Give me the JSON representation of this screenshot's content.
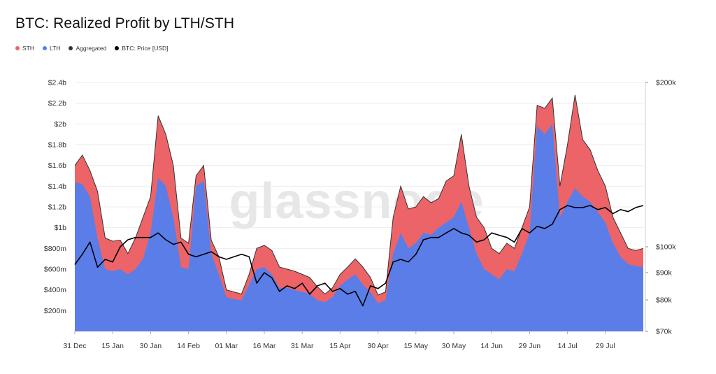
{
  "title": "BTC: Realized Profit by LTH/STH",
  "watermark": "glassnode",
  "legend": [
    {
      "label": "STH",
      "color": "#ec6468"
    },
    {
      "label": "LTH",
      "color": "#5b7de8"
    },
    {
      "label": "Aggregated",
      "color": "#333333"
    },
    {
      "label": "BTC: Price [USD]",
      "color": "#000000"
    }
  ],
  "chart_data": {
    "type": "area",
    "x_tick_labels": [
      "31 Dec",
      "15 Jan",
      "30 Jan",
      "14 Feb",
      "01 Mar",
      "16 Mar",
      "31 Mar",
      "15 Apr",
      "30 Apr",
      "15 May",
      "30 May",
      "14 Jun",
      "29 Jun",
      "14 Jul",
      "29 Jul"
    ],
    "y_left_ticks": [
      "$200m",
      "$400m",
      "$600m",
      "$800m",
      "$1b",
      "$1.2b",
      "$1.4b",
      "$1.6b",
      "$1.8b",
      "$2b",
      "$2.2b",
      "$2.4b"
    ],
    "y_right_ticks": [
      "$70k",
      "$80k",
      "$90k",
      "$100k",
      "$200k"
    ],
    "y_left_range": [
      0,
      2.4
    ],
    "y_left_unit": "billions USD",
    "y_right_scale": "log",
    "y_right_range": [
      70000,
      200000
    ],
    "grid": true,
    "legend_placement": "top-left",
    "series": [
      {
        "name": "STH",
        "color": "#ec6468",
        "stacked_on": "LTH",
        "points": [
          [
            0,
            1.6
          ],
          [
            3,
            1.7
          ],
          [
            6,
            1.55
          ],
          [
            9,
            1.35
          ],
          [
            12,
            0.9
          ],
          [
            15,
            0.87
          ],
          [
            18,
            0.88
          ],
          [
            21,
            0.75
          ],
          [
            24,
            0.9
          ],
          [
            27,
            1.1
          ],
          [
            30,
            1.3
          ],
          [
            33,
            2.08
          ],
          [
            36,
            1.9
          ],
          [
            39,
            1.6
          ],
          [
            42,
            0.9
          ],
          [
            45,
            0.85
          ],
          [
            48,
            1.5
          ],
          [
            51,
            1.6
          ],
          [
            54,
            0.88
          ],
          [
            57,
            0.72
          ],
          [
            60,
            0.4
          ],
          [
            63,
            0.38
          ],
          [
            66,
            0.36
          ],
          [
            69,
            0.55
          ],
          [
            72,
            0.8
          ],
          [
            75,
            0.83
          ],
          [
            78,
            0.78
          ],
          [
            81,
            0.62
          ],
          [
            84,
            0.6
          ],
          [
            87,
            0.58
          ],
          [
            90,
            0.55
          ],
          [
            93,
            0.52
          ],
          [
            96,
            0.43
          ],
          [
            99,
            0.36
          ],
          [
            102,
            0.42
          ],
          [
            105,
            0.55
          ],
          [
            108,
            0.62
          ],
          [
            111,
            0.7
          ],
          [
            114,
            0.62
          ],
          [
            117,
            0.52
          ],
          [
            120,
            0.35
          ],
          [
            123,
            0.38
          ],
          [
            126,
            1.1
          ],
          [
            129,
            1.4
          ],
          [
            132,
            1.18
          ],
          [
            135,
            1.2
          ],
          [
            138,
            1.3
          ],
          [
            141,
            1.24
          ],
          [
            144,
            1.28
          ],
          [
            147,
            1.45
          ],
          [
            150,
            1.5
          ],
          [
            153,
            1.9
          ],
          [
            156,
            1.4
          ],
          [
            159,
            1.1
          ],
          [
            162,
            1.0
          ],
          [
            165,
            0.8
          ],
          [
            168,
            0.75
          ],
          [
            171,
            0.85
          ],
          [
            174,
            0.8
          ],
          [
            177,
            1.0
          ],
          [
            180,
            1.2
          ],
          [
            183,
            2.18
          ],
          [
            186,
            2.15
          ],
          [
            189,
            2.25
          ],
          [
            192,
            1.4
          ],
          [
            195,
            1.8
          ],
          [
            198,
            2.28
          ],
          [
            201,
            1.85
          ],
          [
            204,
            1.75
          ],
          [
            207,
            1.55
          ],
          [
            210,
            1.4
          ],
          [
            213,
            1.1
          ],
          [
            216,
            0.95
          ],
          [
            219,
            0.8
          ],
          [
            222,
            0.78
          ],
          [
            225,
            0.8
          ]
        ]
      },
      {
        "name": "LTH",
        "color": "#5b7de8",
        "points": [
          [
            0,
            1.44
          ],
          [
            3,
            1.42
          ],
          [
            6,
            1.3
          ],
          [
            9,
            0.9
          ],
          [
            12,
            0.6
          ],
          [
            15,
            0.58
          ],
          [
            18,
            0.6
          ],
          [
            21,
            0.55
          ],
          [
            24,
            0.6
          ],
          [
            27,
            0.7
          ],
          [
            30,
            0.95
          ],
          [
            33,
            1.48
          ],
          [
            36,
            1.4
          ],
          [
            39,
            1.1
          ],
          [
            42,
            0.62
          ],
          [
            45,
            0.6
          ],
          [
            48,
            1.4
          ],
          [
            51,
            1.45
          ],
          [
            54,
            0.75
          ],
          [
            57,
            0.55
          ],
          [
            60,
            0.33
          ],
          [
            63,
            0.31
          ],
          [
            66,
            0.3
          ],
          [
            69,
            0.45
          ],
          [
            72,
            0.6
          ],
          [
            75,
            0.62
          ],
          [
            78,
            0.55
          ],
          [
            81,
            0.42
          ],
          [
            84,
            0.42
          ],
          [
            87,
            0.4
          ],
          [
            90,
            0.38
          ],
          [
            93,
            0.36
          ],
          [
            96,
            0.3
          ],
          [
            99,
            0.28
          ],
          [
            102,
            0.33
          ],
          [
            105,
            0.44
          ],
          [
            108,
            0.5
          ],
          [
            111,
            0.55
          ],
          [
            114,
            0.45
          ],
          [
            117,
            0.38
          ],
          [
            120,
            0.27
          ],
          [
            123,
            0.3
          ],
          [
            126,
            0.75
          ],
          [
            129,
            0.95
          ],
          [
            132,
            0.8
          ],
          [
            135,
            0.85
          ],
          [
            138,
            0.95
          ],
          [
            141,
            0.93
          ],
          [
            144,
            1.0
          ],
          [
            147,
            1.05
          ],
          [
            150,
            1.1
          ],
          [
            153,
            1.25
          ],
          [
            156,
            1.0
          ],
          [
            159,
            0.75
          ],
          [
            162,
            0.6
          ],
          [
            165,
            0.55
          ],
          [
            168,
            0.5
          ],
          [
            171,
            0.6
          ],
          [
            174,
            0.58
          ],
          [
            177,
            0.75
          ],
          [
            180,
            0.95
          ],
          [
            183,
            1.98
          ],
          [
            186,
            1.9
          ],
          [
            189,
            2.0
          ],
          [
            192,
            1.1
          ],
          [
            195,
            1.25
          ],
          [
            198,
            1.38
          ],
          [
            201,
            1.3
          ],
          [
            204,
            1.25
          ],
          [
            207,
            1.15
          ],
          [
            210,
            1.05
          ],
          [
            213,
            0.85
          ],
          [
            216,
            0.72
          ],
          [
            219,
            0.65
          ],
          [
            222,
            0.63
          ],
          [
            225,
            0.62
          ]
        ]
      },
      {
        "name": "Aggregated",
        "color": "#333333",
        "stacked_on": "LTH",
        "points": [
          [
            0,
            1.6
          ],
          [
            3,
            1.7
          ],
          [
            6,
            1.55
          ],
          [
            9,
            1.35
          ],
          [
            12,
            0.9
          ],
          [
            15,
            0.87
          ],
          [
            18,
            0.88
          ],
          [
            21,
            0.75
          ],
          [
            24,
            0.9
          ],
          [
            27,
            1.1
          ],
          [
            30,
            1.3
          ],
          [
            33,
            2.08
          ],
          [
            36,
            1.9
          ],
          [
            39,
            1.6
          ],
          [
            42,
            0.9
          ],
          [
            45,
            0.85
          ],
          [
            48,
            1.5
          ],
          [
            51,
            1.6
          ],
          [
            54,
            0.88
          ],
          [
            57,
            0.72
          ],
          [
            60,
            0.4
          ],
          [
            63,
            0.38
          ],
          [
            66,
            0.36
          ],
          [
            69,
            0.55
          ],
          [
            72,
            0.8
          ],
          [
            75,
            0.83
          ],
          [
            78,
            0.78
          ],
          [
            81,
            0.62
          ],
          [
            84,
            0.6
          ],
          [
            87,
            0.58
          ],
          [
            90,
            0.55
          ],
          [
            93,
            0.52
          ],
          [
            96,
            0.43
          ],
          [
            99,
            0.36
          ],
          [
            102,
            0.42
          ],
          [
            105,
            0.55
          ],
          [
            108,
            0.62
          ],
          [
            111,
            0.7
          ],
          [
            114,
            0.62
          ],
          [
            117,
            0.52
          ],
          [
            120,
            0.35
          ],
          [
            123,
            0.38
          ],
          [
            126,
            1.1
          ],
          [
            129,
            1.4
          ],
          [
            132,
            1.18
          ],
          [
            135,
            1.2
          ],
          [
            138,
            1.3
          ],
          [
            141,
            1.24
          ],
          [
            144,
            1.28
          ],
          [
            147,
            1.45
          ],
          [
            150,
            1.5
          ],
          [
            153,
            1.9
          ],
          [
            156,
            1.4
          ],
          [
            159,
            1.1
          ],
          [
            162,
            1.0
          ],
          [
            165,
            0.8
          ],
          [
            168,
            0.75
          ],
          [
            171,
            0.85
          ],
          [
            174,
            0.8
          ],
          [
            177,
            1.0
          ],
          [
            180,
            1.2
          ],
          [
            183,
            2.18
          ],
          [
            186,
            2.15
          ],
          [
            189,
            2.25
          ],
          [
            192,
            1.4
          ],
          [
            195,
            1.8
          ],
          [
            198,
            2.28
          ],
          [
            201,
            1.85
          ],
          [
            204,
            1.75
          ],
          [
            207,
            1.55
          ],
          [
            210,
            1.4
          ],
          [
            213,
            1.1
          ],
          [
            216,
            0.95
          ],
          [
            219,
            0.8
          ],
          [
            222,
            0.78
          ],
          [
            225,
            0.8
          ]
        ]
      },
      {
        "name": "BTC: Price [USD]",
        "color": "#000000",
        "axis": "right",
        "points": [
          [
            0,
            93000
          ],
          [
            3,
            97000
          ],
          [
            6,
            102000
          ],
          [
            9,
            92000
          ],
          [
            12,
            95000
          ],
          [
            15,
            94000
          ],
          [
            18,
            100000
          ],
          [
            21,
            103000
          ],
          [
            24,
            104000
          ],
          [
            27,
            104000
          ],
          [
            30,
            104000
          ],
          [
            33,
            106000
          ],
          [
            36,
            103000
          ],
          [
            39,
            101000
          ],
          [
            42,
            102000
          ],
          [
            45,
            97000
          ],
          [
            48,
            96000
          ],
          [
            51,
            97000
          ],
          [
            54,
            98000
          ],
          [
            57,
            96000
          ],
          [
            60,
            95000
          ],
          [
            63,
            96000
          ],
          [
            66,
            97000
          ],
          [
            69,
            96000
          ],
          [
            72,
            86000
          ],
          [
            75,
            90000
          ],
          [
            78,
            88000
          ],
          [
            81,
            83000
          ],
          [
            84,
            85000
          ],
          [
            87,
            84000
          ],
          [
            90,
            86000
          ],
          [
            93,
            82000
          ],
          [
            96,
            85000
          ],
          [
            99,
            86000
          ],
          [
            102,
            83000
          ],
          [
            105,
            84000
          ],
          [
            108,
            82000
          ],
          [
            111,
            83000
          ],
          [
            114,
            78000
          ],
          [
            117,
            85000
          ],
          [
            120,
            84000
          ],
          [
            123,
            86000
          ],
          [
            126,
            94000
          ],
          [
            129,
            95000
          ],
          [
            132,
            94000
          ],
          [
            135,
            97000
          ],
          [
            138,
            103000
          ],
          [
            141,
            104000
          ],
          [
            144,
            104000
          ],
          [
            147,
            106000
          ],
          [
            150,
            108000
          ],
          [
            153,
            106000
          ],
          [
            156,
            105000
          ],
          [
            159,
            102000
          ],
          [
            162,
            103000
          ],
          [
            165,
            106000
          ],
          [
            168,
            105000
          ],
          [
            171,
            104000
          ],
          [
            174,
            102000
          ],
          [
            177,
            108000
          ],
          [
            180,
            106000
          ],
          [
            183,
            109000
          ],
          [
            186,
            108000
          ],
          [
            189,
            110000
          ],
          [
            192,
            117000
          ],
          [
            195,
            119000
          ],
          [
            198,
            118000
          ],
          [
            201,
            118000
          ],
          [
            204,
            119000
          ],
          [
            207,
            117000
          ],
          [
            210,
            118000
          ],
          [
            213,
            115000
          ],
          [
            216,
            117000
          ],
          [
            219,
            116000
          ],
          [
            222,
            118000
          ],
          [
            225,
            119000
          ]
        ]
      }
    ]
  }
}
